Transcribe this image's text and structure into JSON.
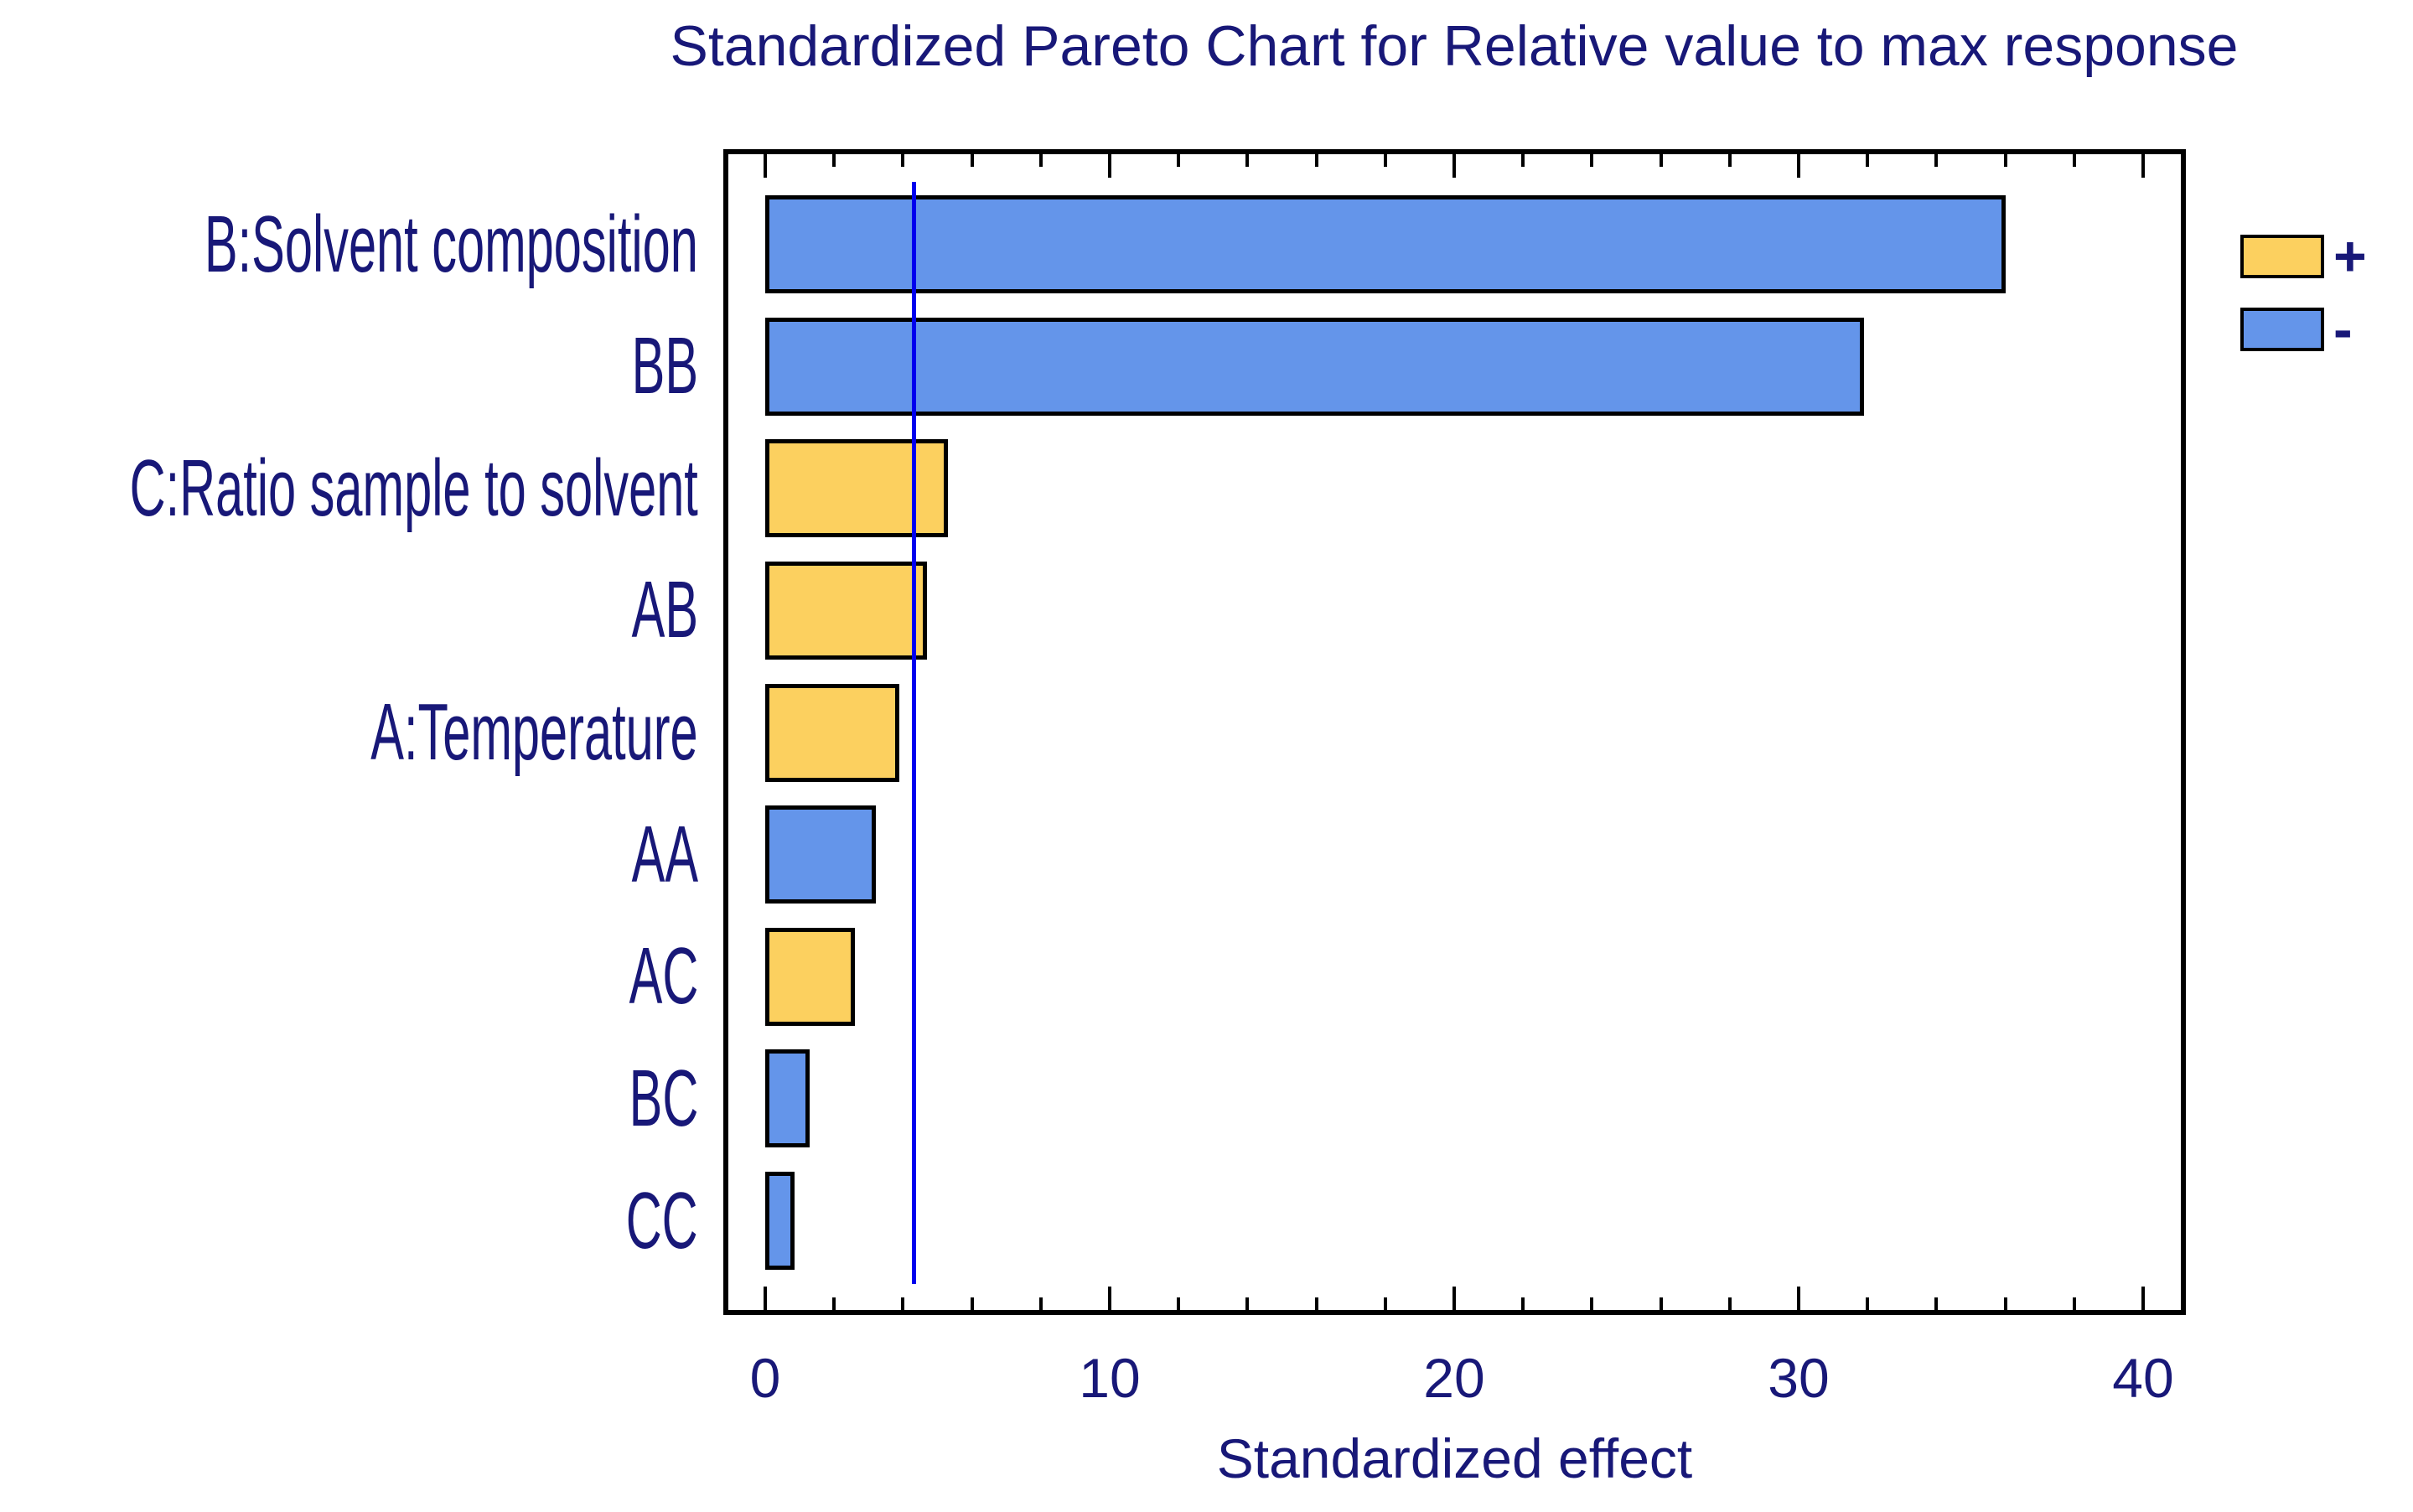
{
  "chart_data": {
    "type": "bar",
    "orientation": "horizontal",
    "title": "Standardized Pareto Chart for Relative value to max response",
    "xlabel": "Standardized effect",
    "categories": [
      "B:Solvent composition",
      "BB",
      "C:Ratio sample to solvent",
      "AB",
      "A:Temperature",
      "AA",
      "AC",
      "BC",
      "CC"
    ],
    "values": [
      36.0,
      31.9,
      5.3,
      4.7,
      3.9,
      3.2,
      2.6,
      1.3,
      0.85
    ],
    "signs": [
      "-",
      "-",
      "+",
      "+",
      "+",
      "-",
      "+",
      "-",
      "-"
    ],
    "reference_line": 4.3,
    "x_major_ticks": [
      0,
      10,
      20,
      30,
      40
    ],
    "x_minor_tick_step": 2,
    "xlim": [
      -1.2,
      41.2
    ],
    "grid": false,
    "legend_position": "right",
    "legend": [
      {
        "label": "+",
        "sign": "+"
      },
      {
        "label": "-",
        "sign": "-"
      }
    ],
    "colors": {
      "positive": "#FCD05F",
      "negative": "#6495EA",
      "reference_line": "#0000EE",
      "text": "#181878",
      "bar_border": "#000000"
    }
  }
}
